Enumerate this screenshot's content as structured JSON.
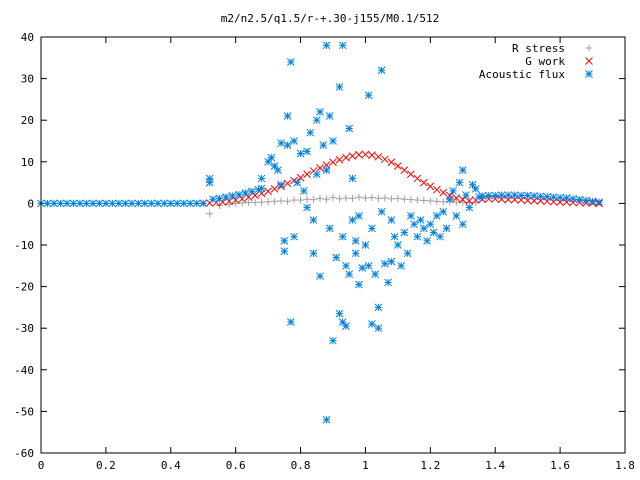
{
  "chart_data": {
    "type": "scatter",
    "title": "m2/n2.5/q1.5/r-+.30-j155/M0.1/512",
    "xlabel": "",
    "ylabel": "",
    "xlim": [
      0,
      1.8
    ],
    "ylim": [
      -60,
      40
    ],
    "xticks": [
      0,
      0.2,
      0.4,
      0.6,
      0.8,
      1,
      1.2,
      1.4,
      1.6,
      1.8
    ],
    "yticks": [
      -60,
      -50,
      -40,
      -30,
      -20,
      -10,
      0,
      10,
      20,
      30,
      40
    ],
    "xtick_labels": [
      "0",
      "0.2",
      "0.4",
      "0.6",
      "0.8",
      "1",
      "1.2",
      "1.4",
      "1.6",
      "1.8"
    ],
    "ytick_labels": [
      "-60",
      "-50",
      "-40",
      "-30",
      "-20",
      "-10",
      "0",
      "10",
      "20",
      "30",
      "40"
    ],
    "grid": false,
    "legend_position": "top-right",
    "series": [
      {
        "name": "R stress",
        "marker": "plus",
        "color": "#a0a0a0",
        "points": [
          [
            0.52,
            -2.5
          ],
          [
            0.55,
            -0.5
          ],
          [
            0.58,
            -0.3
          ],
          [
            0.6,
            0.0
          ],
          [
            0.62,
            0.1
          ],
          [
            0.64,
            0.2
          ],
          [
            0.66,
            0.2
          ],
          [
            0.68,
            0.3
          ],
          [
            0.7,
            0.4
          ],
          [
            0.72,
            0.5
          ],
          [
            0.74,
            0.6
          ],
          [
            0.76,
            0.5
          ],
          [
            0.78,
            0.8
          ],
          [
            0.8,
            0.8
          ],
          [
            0.82,
            1.0
          ],
          [
            0.84,
            0.9
          ],
          [
            0.86,
            1.2
          ],
          [
            0.88,
            1.0
          ],
          [
            0.9,
            1.4
          ],
          [
            0.92,
            1.1
          ],
          [
            0.94,
            1.3
          ],
          [
            0.96,
            1.2
          ],
          [
            0.98,
            1.5
          ],
          [
            1.0,
            1.3
          ],
          [
            1.02,
            1.4
          ],
          [
            1.04,
            1.2
          ],
          [
            1.06,
            1.3
          ],
          [
            1.08,
            1.1
          ],
          [
            1.1,
            1.2
          ],
          [
            1.12,
            1.0
          ],
          [
            1.14,
            0.9
          ],
          [
            1.16,
            0.8
          ],
          [
            1.18,
            0.7
          ],
          [
            1.2,
            0.6
          ],
          [
            1.22,
            0.5
          ],
          [
            1.24,
            0.4
          ],
          [
            1.26,
            0.4
          ],
          [
            1.28,
            0.3
          ],
          [
            1.3,
            0.3
          ],
          [
            1.32,
            0.2
          ],
          [
            1.34,
            0.2
          ]
        ]
      },
      {
        "name": "G work",
        "marker": "cross",
        "color": "#ff0000",
        "points": [
          [
            0.5,
            0.0
          ],
          [
            0.52,
            0.1
          ],
          [
            0.54,
            0.2
          ],
          [
            0.56,
            0.3
          ],
          [
            0.58,
            0.5
          ],
          [
            0.6,
            0.8
          ],
          [
            0.62,
            1.1
          ],
          [
            0.64,
            1.5
          ],
          [
            0.66,
            1.9
          ],
          [
            0.68,
            2.4
          ],
          [
            0.7,
            2.9
          ],
          [
            0.72,
            3.5
          ],
          [
            0.74,
            4.1
          ],
          [
            0.76,
            4.8
          ],
          [
            0.78,
            5.5
          ],
          [
            0.8,
            6.2
          ],
          [
            0.82,
            7.0
          ],
          [
            0.84,
            7.8
          ],
          [
            0.86,
            8.5
          ],
          [
            0.88,
            9.2
          ],
          [
            0.9,
            9.9
          ],
          [
            0.92,
            10.5
          ],
          [
            0.94,
            11.0
          ],
          [
            0.96,
            11.4
          ],
          [
            0.98,
            11.7
          ],
          [
            1.0,
            11.8
          ],
          [
            1.02,
            11.6
          ],
          [
            1.04,
            11.2
          ],
          [
            1.06,
            10.6
          ],
          [
            1.08,
            9.9
          ],
          [
            1.1,
            9.0
          ],
          [
            1.12,
            8.0
          ],
          [
            1.14,
            7.0
          ],
          [
            1.16,
            6.0
          ],
          [
            1.18,
            5.0
          ],
          [
            1.2,
            4.1
          ],
          [
            1.22,
            3.3
          ],
          [
            1.24,
            2.6
          ],
          [
            1.26,
            1.9
          ],
          [
            1.28,
            1.3
          ],
          [
            1.3,
            0.9
          ],
          [
            1.32,
            0.6
          ],
          [
            1.34,
            0.8
          ],
          [
            1.36,
            1.0
          ],
          [
            1.38,
            1.1
          ],
          [
            1.4,
            1.1
          ],
          [
            1.42,
            1.0
          ],
          [
            1.44,
            0.9
          ],
          [
            1.46,
            0.9
          ],
          [
            1.48,
            0.8
          ],
          [
            1.5,
            0.7
          ],
          [
            1.52,
            0.6
          ],
          [
            1.54,
            0.6
          ],
          [
            1.56,
            0.5
          ],
          [
            1.58,
            0.4
          ],
          [
            1.6,
            0.3
          ],
          [
            1.62,
            0.3
          ],
          [
            1.64,
            0.2
          ],
          [
            1.66,
            0.2
          ],
          [
            1.68,
            0.1
          ],
          [
            1.7,
            0.1
          ],
          [
            1.72,
            0.0
          ]
        ]
      },
      {
        "name": "Acoustic flux",
        "marker": "star",
        "color": "#0080e0",
        "points": [
          [
            0.0,
            0.0
          ],
          [
            0.02,
            0.0
          ],
          [
            0.04,
            0.0
          ],
          [
            0.06,
            0.0
          ],
          [
            0.08,
            0.0
          ],
          [
            0.1,
            0.0
          ],
          [
            0.12,
            0.0
          ],
          [
            0.14,
            0.0
          ],
          [
            0.16,
            0.0
          ],
          [
            0.18,
            0.0
          ],
          [
            0.2,
            0.0
          ],
          [
            0.22,
            0.0
          ],
          [
            0.24,
            0.0
          ],
          [
            0.26,
            0.0
          ],
          [
            0.28,
            0.0
          ],
          [
            0.3,
            0.0
          ],
          [
            0.32,
            0.0
          ],
          [
            0.34,
            0.0
          ],
          [
            0.36,
            0.0
          ],
          [
            0.38,
            0.0
          ],
          [
            0.4,
            0.0
          ],
          [
            0.42,
            0.0
          ],
          [
            0.44,
            0.0
          ],
          [
            0.46,
            0.0
          ],
          [
            0.48,
            0.0
          ],
          [
            0.5,
            0.0
          ],
          [
            0.52,
            6.0
          ],
          [
            0.52,
            5.0
          ],
          [
            0.53,
            1.0
          ],
          [
            0.55,
            1.2
          ],
          [
            0.57,
            1.5
          ],
          [
            0.59,
            1.8
          ],
          [
            0.61,
            2.1
          ],
          [
            0.63,
            2.5
          ],
          [
            0.65,
            2.9
          ],
          [
            0.67,
            3.3
          ],
          [
            0.68,
            3.6
          ],
          [
            0.68,
            6.0
          ],
          [
            0.7,
            10.0
          ],
          [
            0.71,
            11.0
          ],
          [
            0.72,
            9.0
          ],
          [
            0.73,
            8.0
          ],
          [
            0.74,
            14.5
          ],
          [
            0.74,
            4.5
          ],
          [
            0.75,
            -9.0
          ],
          [
            0.75,
            -11.5
          ],
          [
            0.76,
            21.0
          ],
          [
            0.76,
            14.0
          ],
          [
            0.77,
            34.0
          ],
          [
            0.77,
            -28.5
          ],
          [
            0.78,
            15.0
          ],
          [
            0.78,
            -8.0
          ],
          [
            0.79,
            5.0
          ],
          [
            0.8,
            12.0
          ],
          [
            0.81,
            3.0
          ],
          [
            0.82,
            12.5
          ],
          [
            0.82,
            -1.0
          ],
          [
            0.83,
            17.0
          ],
          [
            0.84,
            -4.0
          ],
          [
            0.84,
            -12.0
          ],
          [
            0.85,
            7.0
          ],
          [
            0.85,
            20.0
          ],
          [
            0.86,
            22.0
          ],
          [
            0.86,
            -17.5
          ],
          [
            0.87,
            14.0
          ],
          [
            0.88,
            38.0
          ],
          [
            0.88,
            -52.0
          ],
          [
            0.88,
            8.0
          ],
          [
            0.89,
            21.0
          ],
          [
            0.89,
            -6.0
          ],
          [
            0.9,
            15.0
          ],
          [
            0.9,
            -33.0
          ],
          [
            0.91,
            -13.0
          ],
          [
            0.92,
            28.0
          ],
          [
            0.92,
            -26.5
          ],
          [
            0.93,
            38.0
          ],
          [
            0.93,
            -8.0
          ],
          [
            0.93,
            -28.5
          ],
          [
            0.94,
            -29.5
          ],
          [
            0.94,
            -15.0
          ],
          [
            0.95,
            18.0
          ],
          [
            0.95,
            -17.0
          ],
          [
            0.96,
            6.0
          ],
          [
            0.96,
            -4.0
          ],
          [
            0.97,
            -9.0
          ],
          [
            0.97,
            -12.0
          ],
          [
            0.98,
            -19.5
          ],
          [
            0.98,
            -3.0
          ],
          [
            0.99,
            -15.5
          ],
          [
            1.0,
            -10.0
          ],
          [
            1.01,
            26.0
          ],
          [
            1.01,
            -15.0
          ],
          [
            1.02,
            -29.0
          ],
          [
            1.02,
            -6.0
          ],
          [
            1.03,
            -17.0
          ],
          [
            1.04,
            -25.0
          ],
          [
            1.04,
            -30.0
          ],
          [
            1.05,
            32.0
          ],
          [
            1.05,
            -2.0
          ],
          [
            1.06,
            -14.5
          ],
          [
            1.07,
            -19.0
          ],
          [
            1.08,
            -14.0
          ],
          [
            1.08,
            -4.0
          ],
          [
            1.09,
            -8.0
          ],
          [
            1.1,
            -10.0
          ],
          [
            1.11,
            -15.0
          ],
          [
            1.12,
            -7.0
          ],
          [
            1.13,
            -12.0
          ],
          [
            1.14,
            -3.0
          ],
          [
            1.15,
            -5.0
          ],
          [
            1.16,
            -8.0
          ],
          [
            1.17,
            -4.0
          ],
          [
            1.18,
            -6.0
          ],
          [
            1.19,
            -9.0
          ],
          [
            1.2,
            -5.0
          ],
          [
            1.21,
            -7.0
          ],
          [
            1.22,
            -3.0
          ],
          [
            1.23,
            -8.0
          ],
          [
            1.24,
            -2.0
          ],
          [
            1.25,
            -6.0
          ],
          [
            1.26,
            1.0
          ],
          [
            1.27,
            3.0
          ],
          [
            1.28,
            -3.0
          ],
          [
            1.29,
            5.0
          ],
          [
            1.3,
            8.0
          ],
          [
            1.3,
            -5.0
          ],
          [
            1.31,
            2.0
          ],
          [
            1.32,
            -1.0
          ],
          [
            1.33,
            4.5
          ],
          [
            1.34,
            3.5
          ],
          [
            1.35,
            1.5
          ],
          [
            1.36,
            1.8
          ],
          [
            1.38,
            1.9
          ],
          [
            1.4,
            1.9
          ],
          [
            1.42,
            2.0
          ],
          [
            1.44,
            2.0
          ],
          [
            1.46,
            2.0
          ],
          [
            1.48,
            1.9
          ],
          [
            1.5,
            1.9
          ],
          [
            1.52,
            1.8
          ],
          [
            1.54,
            1.7
          ],
          [
            1.56,
            1.6
          ],
          [
            1.58,
            1.5
          ],
          [
            1.6,
            1.4
          ],
          [
            1.62,
            1.3
          ],
          [
            1.64,
            1.1
          ],
          [
            1.66,
            0.9
          ],
          [
            1.68,
            0.7
          ],
          [
            1.7,
            0.5
          ],
          [
            1.72,
            0.3
          ]
        ]
      }
    ]
  }
}
